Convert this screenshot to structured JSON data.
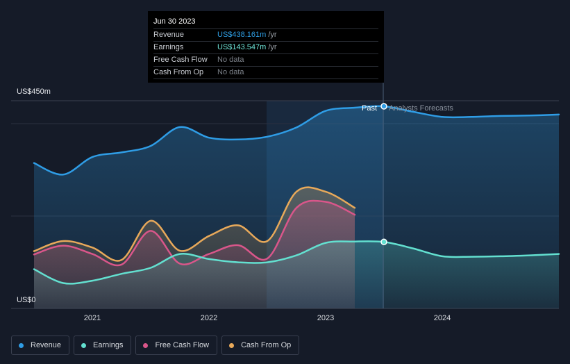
{
  "tooltip": {
    "date": "Jun 30 2023",
    "rows": [
      {
        "label": "Revenue",
        "value": "US$438.161m",
        "unit": "/yr",
        "color": "#2fa0e6"
      },
      {
        "label": "Earnings",
        "value": "US$143.547m",
        "unit": "/yr",
        "color": "#6ee3d6"
      },
      {
        "label": "Free Cash Flow",
        "value": "No data",
        "unit": "",
        "color": ""
      },
      {
        "label": "Cash From Op",
        "value": "No data",
        "unit": "",
        "color": ""
      }
    ]
  },
  "zones": {
    "past": "Past",
    "forecast": "Analysts Forecasts"
  },
  "legend": [
    {
      "label": "Revenue",
      "color": "#2f9de6"
    },
    {
      "label": "Earnings",
      "color": "#63e0d0"
    },
    {
      "label": "Free Cash Flow",
      "color": "#d9568a"
    },
    {
      "label": "Cash From Op",
      "color": "#e8a95a"
    }
  ],
  "chart_data": {
    "type": "line",
    "ylabels": {
      "top": "US$450m",
      "bottom": "US$0"
    },
    "ylim": [
      0,
      450
    ],
    "xticks": [
      "2021",
      "2022",
      "2023",
      "2024"
    ],
    "highlight_date": 2023.5,
    "past_region_start": 2022.5,
    "series": [
      {
        "name": "Revenue",
        "color": "#2f9de6",
        "x": [
          2020.5,
          2020.75,
          2021.0,
          2021.25,
          2021.5,
          2021.75,
          2022.0,
          2022.25,
          2022.5,
          2022.75,
          2023.0,
          2023.25,
          2023.5,
          2023.75,
          2024.0,
          2024.25,
          2024.5,
          2024.75,
          2025.0
        ],
        "y": [
          315,
          290,
          328,
          338,
          352,
          393,
          370,
          366,
          372,
          392,
          428,
          435,
          438,
          426,
          415,
          415,
          417,
          418,
          420
        ]
      },
      {
        "name": "Earnings",
        "color": "#63e0d0",
        "x": [
          2020.5,
          2020.75,
          2021.0,
          2021.25,
          2021.5,
          2021.75,
          2022.0,
          2022.25,
          2022.5,
          2022.75,
          2023.0,
          2023.25,
          2023.5,
          2023.75,
          2024.0,
          2024.25,
          2024.5,
          2024.75,
          2025.0
        ],
        "y": [
          85,
          55,
          60,
          75,
          88,
          118,
          107,
          100,
          100,
          115,
          142,
          145,
          144,
          130,
          113,
          112,
          113,
          115,
          118
        ]
      },
      {
        "name": "Free Cash Flow",
        "color": "#d9568a",
        "x": [
          2020.5,
          2020.75,
          2021.0,
          2021.25,
          2021.5,
          2021.75,
          2022.0,
          2022.25,
          2022.5,
          2022.75,
          2023.0,
          2023.25
        ],
        "y": [
          117,
          136,
          118,
          95,
          168,
          97,
          118,
          137,
          108,
          218,
          231,
          203
        ]
      },
      {
        "name": "Cash From Op",
        "color": "#e8a95a",
        "x": [
          2020.5,
          2020.75,
          2021.0,
          2021.25,
          2021.5,
          2021.75,
          2022.0,
          2022.25,
          2022.5,
          2022.75,
          2023.0,
          2023.25
        ],
        "y": [
          124,
          146,
          132,
          105,
          190,
          125,
          157,
          180,
          146,
          253,
          253,
          218
        ]
      }
    ]
  }
}
